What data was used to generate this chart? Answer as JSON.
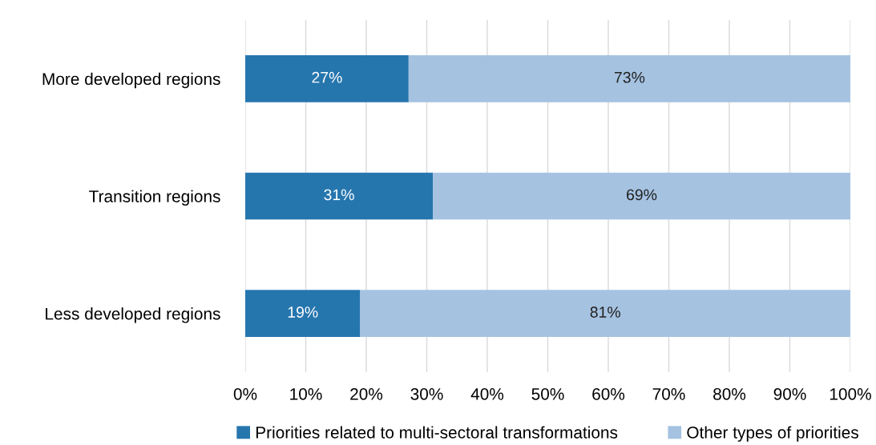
{
  "chart_data": {
    "type": "bar",
    "orientation": "horizontal",
    "stacked": true,
    "categories": [
      "More developed regions",
      "Transition regions",
      "Less developed regions"
    ],
    "series": [
      {
        "name": "Priorities related to multi-sectoral transformations",
        "color": "#2676ae",
        "values": [
          27,
          31,
          19
        ],
        "value_labels": [
          "27%",
          "31%",
          "19%"
        ]
      },
      {
        "name": "Other types of priorities",
        "color": "#a5c2e1",
        "values": [
          73,
          69,
          81
        ],
        "value_labels": [
          "73%",
          "69%",
          "81%"
        ]
      }
    ],
    "xlim": [
      0,
      100
    ],
    "xticks": [
      {
        "value": 0,
        "label": "0%"
      },
      {
        "value": 10,
        "label": "10%"
      },
      {
        "value": 20,
        "label": "20%"
      },
      {
        "value": 30,
        "label": "30%"
      },
      {
        "value": 40,
        "label": "40%"
      },
      {
        "value": 50,
        "label": "50%"
      },
      {
        "value": 60,
        "label": "60%"
      },
      {
        "value": 70,
        "label": "70%"
      },
      {
        "value": 80,
        "label": "80%"
      },
      {
        "value": 90,
        "label": "90%"
      },
      {
        "value": 100,
        "label": "100%"
      }
    ],
    "grid": "x",
    "legend": "bottom"
  }
}
